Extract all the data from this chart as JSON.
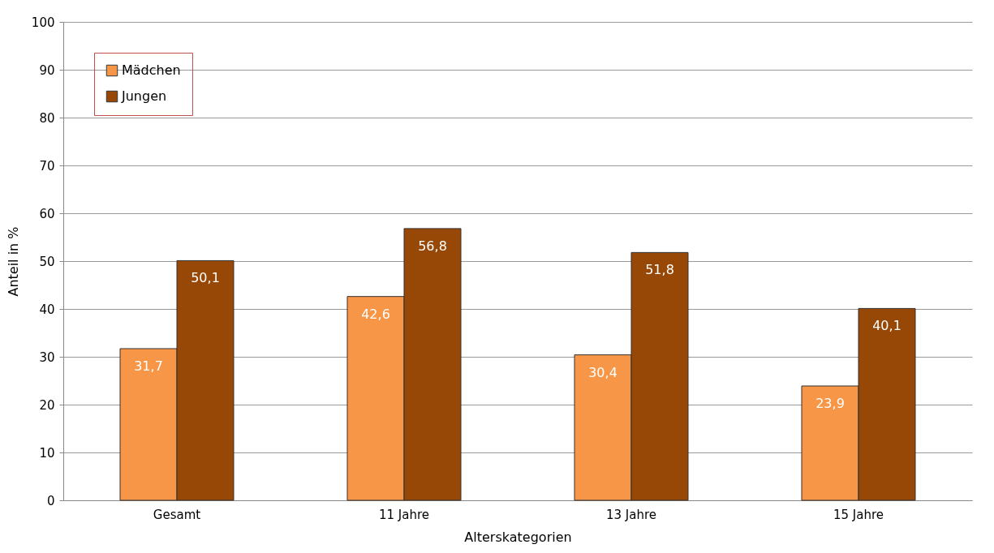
{
  "chart_data": {
    "type": "bar",
    "xlabel": "Alterskategorien",
    "ylabel": "Anteil in %",
    "categories": [
      "Gesamt",
      "11 Jahre",
      "13 Jahre",
      "15 Jahre"
    ],
    "series": [
      {
        "name": "Mädchen",
        "color": "#f79646",
        "values": [
          31.7,
          42.6,
          30.4,
          23.9
        ],
        "value_labels": [
          "31,7",
          "42,6",
          "30,4",
          "23,9"
        ]
      },
      {
        "name": "Jungen",
        "color": "#974706",
        "values": [
          50.1,
          56.8,
          51.8,
          40.1
        ],
        "value_labels": [
          "50,1",
          "56,8",
          "51,8",
          "40,1"
        ]
      }
    ],
    "ylim": [
      0,
      100
    ],
    "yticks": [
      0,
      10,
      20,
      30,
      40,
      50,
      60,
      70,
      80,
      90,
      100
    ],
    "grid": "y",
    "legend": "top left"
  }
}
